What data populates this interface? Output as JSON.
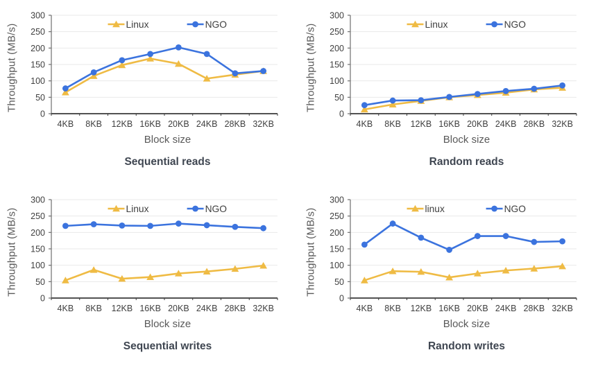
{
  "page": {
    "background": "#ffffff"
  },
  "colors": {
    "linux_series": "#EFBB44",
    "ngo_series": "#3B73DE",
    "gridline": "#E9E9E9",
    "left_axis": "#6F6F6F",
    "bottom_axis": "#3A3A3A",
    "tick_text": "#3F3F3F",
    "axis_label_text": "#595959",
    "title_text": "#3F4651",
    "legend_text": "#404040"
  },
  "chart_data": [
    {
      "type": "line",
      "title": "Sequential reads",
      "xlabel": "Block size",
      "ylabel": "Throughput (MB/s)",
      "categories": [
        "4KB",
        "8KB",
        "12KB",
        "16KB",
        "20KB",
        "24KB",
        "28KB",
        "32KB"
      ],
      "ylim": [
        0,
        300
      ],
      "ytick_step": 50,
      "grid": true,
      "legend_position": "top-inside",
      "series": [
        {
          "name": "Linux",
          "marker": "triangle",
          "color": "#EFBB44",
          "values": [
            65,
            115,
            148,
            168,
            152,
            107,
            119,
            130
          ]
        },
        {
          "name": "NGO",
          "marker": "circle",
          "color": "#3B73DE",
          "values": [
            77,
            126,
            163,
            182,
            202,
            182,
            123,
            130
          ]
        }
      ]
    },
    {
      "type": "line",
      "title": "Random reads",
      "xlabel": "Block size",
      "ylabel": "Throughput (MB/s)",
      "categories": [
        "4KB",
        "8KB",
        "12KB",
        "16KB",
        "20KB",
        "24KB",
        "28KB",
        "32KB"
      ],
      "ylim": [
        0,
        300
      ],
      "ytick_step": 50,
      "grid": true,
      "legend_position": "top-inside",
      "series": [
        {
          "name": "Linux",
          "marker": "triangle",
          "color": "#EFBB44",
          "values": [
            13,
            28,
            39,
            50,
            57,
            64,
            74,
            79
          ]
        },
        {
          "name": "NGO",
          "marker": "circle",
          "color": "#3B73DE",
          "values": [
            26,
            40,
            41,
            51,
            60,
            69,
            76,
            86
          ]
        }
      ]
    },
    {
      "type": "line",
      "title": "Sequential writes",
      "xlabel": "Block size",
      "ylabel": "Throughput (MB/s)",
      "categories": [
        "4KB",
        "8KB",
        "12KB",
        "16KB",
        "20KB",
        "24KB",
        "28KB",
        "32KB"
      ],
      "ylim": [
        0,
        300
      ],
      "ytick_step": 50,
      "grid": true,
      "legend_position": "top-inside",
      "series": [
        {
          "name": "Linux",
          "marker": "triangle",
          "color": "#EFBB44",
          "values": [
            54,
            86,
            59,
            64,
            75,
            81,
            89,
            99
          ]
        },
        {
          "name": "NGO",
          "marker": "circle",
          "color": "#3B73DE",
          "values": [
            220,
            225,
            221,
            220,
            227,
            222,
            217,
            213
          ]
        }
      ]
    },
    {
      "type": "line",
      "title": "Random writes",
      "xlabel": "Block size",
      "ylabel": "Throughput (MB/s)",
      "categories": [
        "4KB",
        "8KB",
        "12KB",
        "16KB",
        "20KB",
        "24KB",
        "28KB",
        "32KB"
      ],
      "ylim": [
        0,
        300
      ],
      "ytick_step": 50,
      "grid": true,
      "legend_position": "top-inside",
      "series": [
        {
          "name": "linux",
          "marker": "triangle",
          "color": "#EFBB44",
          "values": [
            54,
            82,
            80,
            63,
            75,
            84,
            90,
            97
          ]
        },
        {
          "name": "NGO",
          "marker": "circle",
          "color": "#3B73DE",
          "values": [
            163,
            227,
            184,
            147,
            189,
            189,
            171,
            173
          ]
        }
      ]
    }
  ]
}
